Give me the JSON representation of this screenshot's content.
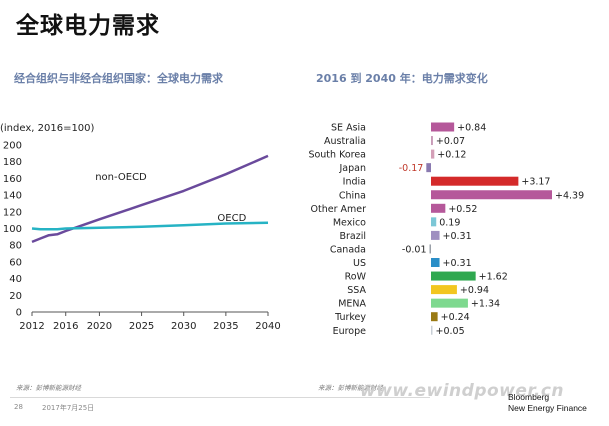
{
  "title": "全球电力需求",
  "chart_data": [
    {
      "type": "line",
      "subtitle": "经合组织与非经合组织国家：全球电力需求",
      "ylabel": "(index, 2016=100)",
      "ylim": [
        0,
        200
      ],
      "yticks": [
        0,
        20,
        40,
        60,
        80,
        100,
        120,
        140,
        160,
        180,
        200
      ],
      "xlim": [
        2012,
        2040
      ],
      "xticks": [
        2012,
        2016,
        2020,
        2025,
        2030,
        2035,
        2040
      ],
      "grid": false,
      "series": [
        {
          "name": "non-OECD",
          "color": "#6a4a9c",
          "x": [
            2012,
            2013,
            2014,
            2015,
            2016,
            2018,
            2020,
            2025,
            2030,
            2035,
            2040
          ],
          "y": [
            84,
            88,
            92,
            93,
            97,
            104,
            111,
            128,
            145,
            165,
            187
          ]
        },
        {
          "name": "OECD",
          "color": "#26b3c4",
          "x": [
            2012,
            2013,
            2014,
            2015,
            2016,
            2020,
            2025,
            2030,
            2035,
            2040
          ],
          "y": [
            100,
            99,
            99,
            99,
            100,
            101,
            102,
            104,
            106,
            107
          ]
        }
      ]
    },
    {
      "type": "bar",
      "orientation": "horizontal",
      "subtitle": "2016 到 2040 年：电力需求变化",
      "categories": [
        "SE Asia",
        "Australia",
        "South Korea",
        "Japan",
        "India",
        "China",
        "Other Amer",
        "Mexico",
        "Brazil",
        "Canada",
        "US",
        "RoW",
        "SSA",
        "MENA",
        "Turkey",
        "Europe"
      ],
      "values": [
        0.84,
        0.07,
        0.12,
        -0.17,
        3.17,
        4.39,
        0.52,
        0.19,
        0.31,
        -0.01,
        0.31,
        1.62,
        0.94,
        1.34,
        0.24,
        0.05
      ],
      "labels": [
        "+0.84",
        "+0.07",
        "+0.12",
        "-0.17",
        "+3.17",
        "+4.39",
        "+0.52",
        "0.19",
        "+0.31",
        "-0.01",
        "+0.31",
        "+1.62",
        "+0.94",
        "+1.34",
        "+0.24",
        "+0.05"
      ],
      "colors": [
        "#b5589a",
        "#c89bb8",
        "#d49fb7",
        "#8a7ab0",
        "#d42a2a",
        "#b5589a",
        "#b5589a",
        "#7cc7d6",
        "#9f8fc0",
        "#9aa0a8",
        "#2a8ec7",
        "#2fa84f",
        "#f2c61f",
        "#7ed98f",
        "#9a7a14",
        "#c8cfd6"
      ]
    }
  ],
  "sources": {
    "left": "来源：彭博新能源财经",
    "right": "来源：彭博新能源财经"
  },
  "footer": {
    "page": "28",
    "date": "2017年7月25日",
    "watermark": "www.ewindpower.cn",
    "brand_line1": "Bloomberg",
    "brand_line2": "New Energy Finance"
  }
}
